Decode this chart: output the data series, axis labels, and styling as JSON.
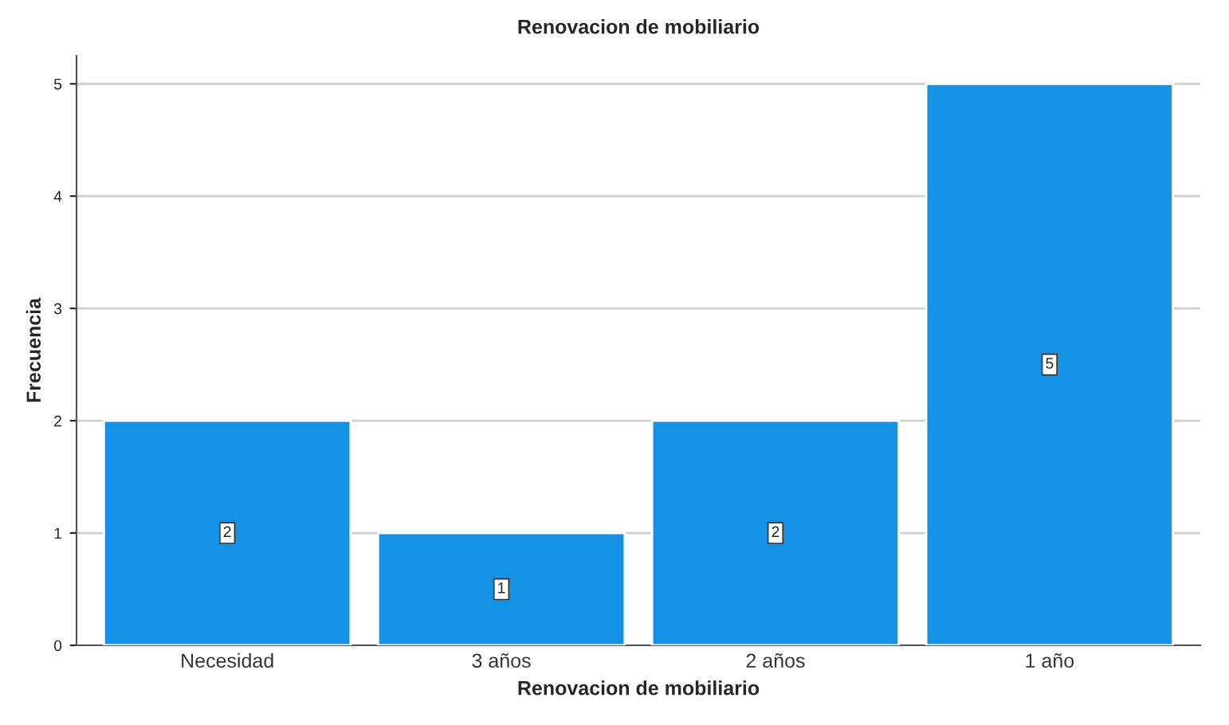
{
  "chart_data": {
    "type": "bar",
    "title": "Renovacion de mobiliario",
    "xlabel": "Renovacion de mobiliario",
    "ylabel": "Frecuencia",
    "categories": [
      "Necesidad",
      "3 años",
      "2 años",
      "1 año"
    ],
    "values": [
      2,
      1,
      2,
      5
    ],
    "color": "#1591e6",
    "ylim": [
      0,
      5.25
    ],
    "yticks": [
      0,
      1,
      2,
      3,
      4,
      5
    ],
    "grid": "y",
    "data_labels": true
  }
}
